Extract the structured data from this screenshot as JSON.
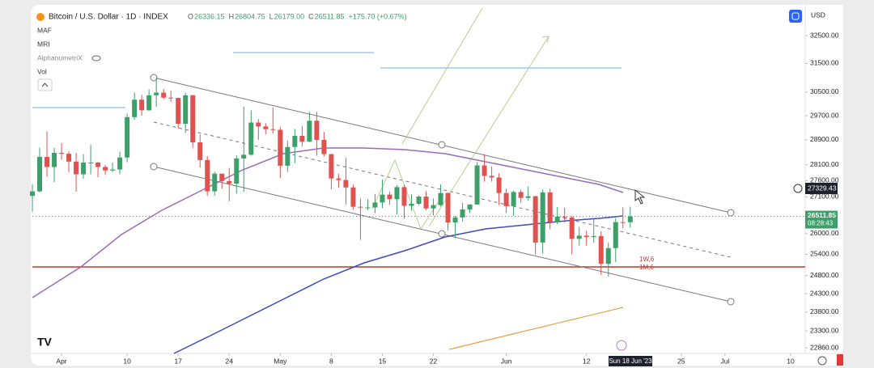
{
  "chart_data": {
    "type": "candlestick",
    "title": "Bitcoin / U.S. Dollar · 1D · INDEX",
    "ohlc_legend": [
      {
        "label": "O",
        "value": "26336.15"
      },
      {
        "label": "H",
        "value": "26804.75"
      },
      {
        "label": "L",
        "value": "26179.00"
      },
      {
        "label": "C",
        "value": "26511.85"
      }
    ],
    "change": "+175.70 (+0.67%)",
    "indicators": [
      "MAF",
      "MRI",
      "AlphanumetriX",
      "Vol"
    ],
    "currency": "USD",
    "crosshair": {
      "date_label": "Sun 18 Jun '23",
      "price_label": "27329.43"
    },
    "last_price_label": "26511.85",
    "countdown": "08:28:43",
    "annotations": [
      "1W,6",
      "1M,6"
    ],
    "up_color": "#3da06a",
    "down_color": "#e0524f",
    "log_scale": true,
    "grid": false,
    "x": [
      "2023-03-28",
      "2023-03-29",
      "2023-03-30",
      "2023-03-31",
      "2023-04-01",
      "2023-04-02",
      "2023-04-03",
      "2023-04-04",
      "2023-04-05",
      "2023-04-06",
      "2023-04-07",
      "2023-04-08",
      "2023-04-09",
      "2023-04-10",
      "2023-04-11",
      "2023-04-12",
      "2023-04-13",
      "2023-04-14",
      "2023-04-15",
      "2023-04-16",
      "2023-04-17",
      "2023-04-18",
      "2023-04-19",
      "2023-04-20",
      "2023-04-21",
      "2023-04-22",
      "2023-04-23",
      "2023-04-24",
      "2023-04-25",
      "2023-04-26",
      "2023-04-27",
      "2023-04-28",
      "2023-04-29",
      "2023-04-30",
      "2023-05-01",
      "2023-05-02",
      "2023-05-03",
      "2023-05-04",
      "2023-05-05",
      "2023-05-06",
      "2023-05-07",
      "2023-05-08",
      "2023-05-09",
      "2023-05-10",
      "2023-05-11",
      "2023-05-12",
      "2023-05-13",
      "2023-05-14",
      "2023-05-15",
      "2023-05-16",
      "2023-05-17",
      "2023-05-18",
      "2023-05-19",
      "2023-05-20",
      "2023-05-21",
      "2023-05-22",
      "2023-05-23",
      "2023-05-24",
      "2023-05-25",
      "2023-05-26",
      "2023-05-27",
      "2023-05-28",
      "2023-05-29",
      "2023-05-30",
      "2023-05-31",
      "2023-06-01",
      "2023-06-02",
      "2023-06-03",
      "2023-06-04",
      "2023-06-05",
      "2023-06-06",
      "2023-06-07",
      "2023-06-08",
      "2023-06-09",
      "2023-06-10",
      "2023-06-11",
      "2023-06-12",
      "2023-06-13",
      "2023-06-14",
      "2023-06-15",
      "2023-06-16",
      "2023-06-17",
      "2023-06-18"
    ],
    "open": [
      27130,
      27270,
      28350,
      28030,
      28480,
      28450,
      28200,
      27800,
      28170,
      28170,
      28030,
      27920,
      27950,
      28330,
      29650,
      30240,
      29880,
      30390,
      30480,
      30310,
      30300,
      29430,
      30390,
      28820,
      28250,
      27270,
      27820,
      27590,
      27510,
      28300,
      28420,
      29470,
      29340,
      29250,
      29230,
      28070,
      28670,
      29030,
      28840,
      29530,
      28900,
      28440,
      27670,
      27620,
      27390,
      26800,
      26780,
      26780,
      26930,
      27170,
      27030,
      27400,
      26830,
      26890,
      27110,
      26750,
      26850,
      27220,
      26330,
      26480,
      26720,
      26870,
      28080,
      27750,
      27700,
      27220,
      26820,
      27250,
      27070,
      27120,
      25740,
      27240,
      26340,
      26500,
      26480,
      25850,
      25940,
      25900,
      25930,
      25130,
      25580,
      26340,
      26336.15
    ],
    "high": [
      27490,
      28650,
      29170,
      28640,
      28800,
      28530,
      28480,
      28440,
      28740,
      28190,
      28100,
      28170,
      28520,
      29770,
      30480,
      30410,
      30590,
      31000,
      30610,
      30550,
      30310,
      30480,
      30410,
      29080,
      28370,
      27880,
      27820,
      28000,
      28400,
      30010,
      29880,
      29580,
      29450,
      29970,
      29330,
      28880,
      29260,
      29360,
      29830,
      29830,
      29160,
      28440,
      27820,
      28320,
      27480,
      27050,
      27030,
      27190,
      27640,
      27260,
      27460,
      27480,
      27180,
      27150,
      27270,
      27050,
      27480,
      27230,
      26530,
      26920,
      26870,
      28180,
      28440,
      28050,
      27830,
      27350,
      27290,
      27320,
      27420,
      27130,
      27330,
      27350,
      26790,
      26770,
      26530,
      26200,
      26090,
      26420,
      26070,
      25740,
      26460,
      26780,
      26804.75
    ],
    "low": [
      26650,
      27240,
      27720,
      27550,
      28260,
      27870,
      27260,
      27670,
      27800,
      27710,
      27780,
      27870,
      27800,
      28180,
      29560,
      29700,
      29870,
      29990,
      30260,
      30170,
      29270,
      29120,
      28640,
      28010,
      27130,
      27140,
      27350,
      26970,
      27200,
      27250,
      28390,
      28900,
      29080,
      29100,
      27680,
      27870,
      28150,
      28690,
      28830,
      28390,
      28370,
      27330,
      27380,
      26870,
      26720,
      25820,
      26700,
      26610,
      26760,
      26860,
      26570,
      26440,
      26680,
      26850,
      26700,
      26540,
      26810,
      26090,
      25870,
      26360,
      26610,
      26860,
      27570,
      27570,
      26850,
      26620,
      26520,
      26920,
      26980,
      25400,
      25420,
      26130,
      26280,
      26330,
      25400,
      25650,
      25650,
      25730,
      24820,
      24770,
      25180,
      26160,
      26179
    ],
    "close": [
      27270,
      28350,
      28030,
      28480,
      28450,
      28200,
      27800,
      28170,
      28170,
      28030,
      27920,
      27950,
      28330,
      29650,
      30240,
      29880,
      30390,
      30480,
      30310,
      30300,
      29430,
      30390,
      28820,
      28250,
      27270,
      27820,
      27590,
      27510,
      28300,
      28420,
      29470,
      29340,
      29250,
      29230,
      28070,
      28670,
      29030,
      28840,
      29530,
      28900,
      28440,
      27670,
      27620,
      27390,
      26800,
      26780,
      26780,
      26930,
      27170,
      27030,
      27400,
      26830,
      26890,
      27110,
      26750,
      26850,
      27220,
      26330,
      26480,
      26720,
      26870,
      28080,
      27750,
      27700,
      27220,
      26820,
      27250,
      27070,
      27120,
      25740,
      27240,
      26340,
      26500,
      26480,
      25850,
      25940,
      25900,
      25930,
      25130,
      25580,
      26340,
      26336.15,
      26511.85
    ],
    "xlim": [
      "2023-03-28",
      "2023-07-12"
    ],
    "xticks": [
      {
        "value": "2023-04-01",
        "label": "Apr"
      },
      {
        "value": "2023-04-10",
        "label": "10"
      },
      {
        "value": "2023-04-17",
        "label": "17"
      },
      {
        "value": "2023-04-24",
        "label": "24"
      },
      {
        "value": "2023-05-01",
        "label": "May"
      },
      {
        "value": "2023-05-08",
        "label": "8"
      },
      {
        "value": "2023-05-15",
        "label": "15"
      },
      {
        "value": "2023-05-22",
        "label": "22"
      },
      {
        "value": "2023-06-01",
        "label": "Jun"
      },
      {
        "value": "2023-06-12",
        "label": "12"
      },
      {
        "value": "2023-06-25",
        "label": "25"
      },
      {
        "value": "2023-07-01",
        "label": "Jul"
      },
      {
        "value": "2023-07-10",
        "label": "10"
      }
    ],
    "ylim": [
      22550,
      33530
    ],
    "yticks": [
      {
        "value": 32500,
        "label": "32500.00"
      },
      {
        "value": 31500,
        "label": "31500.00"
      },
      {
        "value": 30500,
        "label": "30500.00"
      },
      {
        "value": 29700,
        "label": "29700.00"
      },
      {
        "value": 28900,
        "label": "28900.00"
      },
      {
        "value": 28100,
        "label": "28100.00"
      },
      {
        "value": 27600,
        "label": "27600.00"
      },
      {
        "value": 27100,
        "label": "27100.00"
      },
      {
        "value": 26000,
        "label": "26000.00"
      },
      {
        "value": 25400,
        "label": "25400.00"
      },
      {
        "value": 24800,
        "label": "24800.00"
      },
      {
        "value": 24300,
        "label": "24300.00"
      },
      {
        "value": 23800,
        "label": "23800.00"
      },
      {
        "value": 23300,
        "label": "23300.00"
      },
      {
        "value": 22860,
        "label": "22860.00"
      }
    ]
  }
}
